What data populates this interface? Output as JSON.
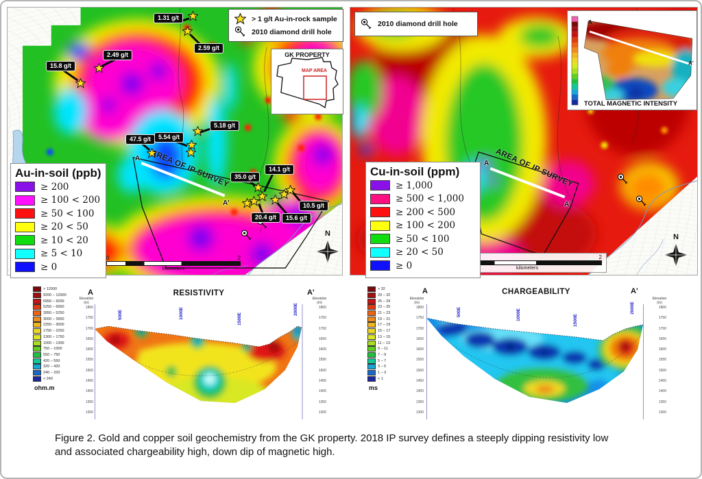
{
  "figure": {
    "caption_line1": "Figure 2. Gold and copper soil geochemistry from the GK property. 2018 IP survey defines a steeply dipping resistivity low",
    "caption_line2": "and associated chargeability high, down dip of magnetic high."
  },
  "au_map": {
    "legend_title": "Au-in-soil (ppb)",
    "legend_items": [
      {
        "color": "#8a10e8",
        "label": "≥ 200"
      },
      {
        "color": "#ff10ff",
        "label": "≥ 100 < 200"
      },
      {
        "color": "#ff1010",
        "label": "≥ 50 < 100"
      },
      {
        "color": "#ffff10",
        "label": "≥ 20 < 50"
      },
      {
        "color": "#10dd10",
        "label": "≥ 10 < 20"
      },
      {
        "color": "#10ffff",
        "label": "≥ 5 < 10"
      },
      {
        "color": "#1010ff",
        "label": "≥ 0"
      }
    ],
    "rock_sample_label": "> 1 g/t Au-in-rock sample",
    "drill_hole_label": "2010 diamond drill hole",
    "inset_title": "GK PROPERTY",
    "inset_map_area": "MAP AREA",
    "samples": [
      "1.31 g/t",
      "2.59 g/t",
      "2.49 g/t",
      "15.8 g/t",
      "47.5 g/t",
      "5.54 g/t",
      "5.18 g/t",
      "35.0 g/t",
      "14.1 g/t",
      "10.5 g/t",
      "20.4 g/t",
      "15.6 g/t"
    ],
    "ip_area_label": "AREA OF IP SURVEY",
    "line_start": "A",
    "line_end": "A'",
    "scale_min": "0",
    "scale_max": "2",
    "scale_unit": "kilometers",
    "north": "N"
  },
  "cu_map": {
    "legend_title": "Cu-in-soil (ppm)",
    "legend_items": [
      {
        "color": "#8a10e8",
        "label": "≥ 1,000"
      },
      {
        "color": "#ff1080",
        "label": "≥ 500 < 1,000"
      },
      {
        "color": "#ff1010",
        "label": "≥ 200 < 500"
      },
      {
        "color": "#ffff10",
        "label": "≥ 100 < 200"
      },
      {
        "color": "#10dd10",
        "label": "≥ 50 < 100"
      },
      {
        "color": "#10ffff",
        "label": "≥ 20 < 50"
      },
      {
        "color": "#1010ff",
        "label": "≥ 0"
      }
    ],
    "drill_hole_label": "2010 diamond drill hole",
    "mag_inset_title": "TOTAL MAGNETIC INTENSITY",
    "mag_line_start": "A",
    "mag_line_end": "A'",
    "ip_area_label": "AREA OF IP SURVEY",
    "line_start": "A",
    "line_end": "A'",
    "scale_min": "0",
    "scale_max": "2",
    "scale_unit": "kilometers",
    "north": "N"
  },
  "resistivity": {
    "title": "RESISTIVITY",
    "line_start": "A",
    "line_end": "A'",
    "unit": "ohm.m",
    "axis_label": "Elevation (m)",
    "elev_ticks": [
      "1800",
      "1750",
      "1700",
      "1650",
      "1600",
      "1550",
      "1500",
      "1450",
      "1400",
      "1350",
      "1300"
    ],
    "stations": [
      "500E",
      "1000E",
      "1500E",
      "2000E"
    ],
    "legend_items": [
      {
        "color": "#7a0a0a",
        "label": "> 12000"
      },
      {
        "color": "#a01010",
        "label": "9200 – 12000"
      },
      {
        "color": "#c41414",
        "label": "6950 – 9200"
      },
      {
        "color": "#e03c10",
        "label": "5250 – 6950"
      },
      {
        "color": "#ec6414",
        "label": "3950 – 5250"
      },
      {
        "color": "#f08c1c",
        "label": "3000 – 3950"
      },
      {
        "color": "#f0b41e",
        "label": "2250 – 3000"
      },
      {
        "color": "#ecd822",
        "label": "1750 – 2250"
      },
      {
        "color": "#d8e822",
        "label": "1300 – 1750"
      },
      {
        "color": "#a8e020",
        "label": "1000 – 1300"
      },
      {
        "color": "#60d020",
        "label": "750 – 1000"
      },
      {
        "color": "#20c040",
        "label": "550 – 750"
      },
      {
        "color": "#10c898",
        "label": "420 – 550"
      },
      {
        "color": "#18a8d8",
        "label": "320 – 420"
      },
      {
        "color": "#1868c8",
        "label": "240 – 320"
      },
      {
        "color": "#1c28a0",
        "label": "< 240"
      }
    ]
  },
  "chargeability": {
    "title": "CHARGEABILITY",
    "line_start": "A",
    "line_end": "A'",
    "unit": "ms",
    "axis_label": "Elevation (m)",
    "elev_ticks": [
      "1800",
      "1750",
      "1700",
      "1650",
      "1600",
      "1550",
      "1500",
      "1450",
      "1400",
      "1350",
      "1300"
    ],
    "stations": [
      "500E",
      "1000E",
      "1500E",
      "2000E"
    ],
    "legend_items": [
      {
        "color": "#7a0a0a",
        "label": "> 32"
      },
      {
        "color": "#a01010",
        "label": "29 – 32"
      },
      {
        "color": "#c41414",
        "label": "25 – 29"
      },
      {
        "color": "#e03c10",
        "label": "23 – 25"
      },
      {
        "color": "#ec6414",
        "label": "21 – 23"
      },
      {
        "color": "#f08c1c",
        "label": "19 – 21"
      },
      {
        "color": "#f0b41e",
        "label": "17 – 19"
      },
      {
        "color": "#ecd822",
        "label": "15 – 17"
      },
      {
        "color": "#d8e822",
        "label": "13 – 15"
      },
      {
        "color": "#a8e020",
        "label": "11 – 13"
      },
      {
        "color": "#60d020",
        "label": "9 – 11"
      },
      {
        "color": "#20c040",
        "label": "7 – 9"
      },
      {
        "color": "#10c898",
        "label": "5 – 7"
      },
      {
        "color": "#18a8d8",
        "label": "3 – 5"
      },
      {
        "color": "#1868c8",
        "label": "1 – 3"
      },
      {
        "color": "#1c28a0",
        "label": "< 1"
      }
    ]
  }
}
